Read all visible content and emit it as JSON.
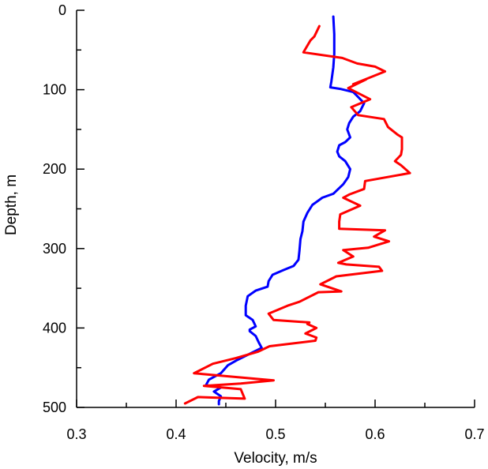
{
  "chart_data": {
    "type": "line",
    "title": "",
    "xlabel": "Velocity, m/s",
    "ylabel": "Depth, m",
    "xlim": [
      0.3,
      0.7
    ],
    "ylim": [
      0,
      500
    ],
    "y_inverted": true,
    "x_ticks": [
      "0.3",
      "0.4",
      "0.5",
      "0.6",
      "0.7"
    ],
    "y_ticks": [
      "0",
      "100",
      "200",
      "300",
      "400",
      "500"
    ],
    "grid": false,
    "legend": "none",
    "series": [
      {
        "color": "#0000ff",
        "points": [
          [
            0.558,
            8
          ],
          [
            0.559,
            30
          ],
          [
            0.559,
            55
          ],
          [
            0.558,
            72
          ],
          [
            0.556,
            90
          ],
          [
            0.555,
            97
          ],
          [
            0.565,
            99
          ],
          [
            0.578,
            103
          ],
          [
            0.582,
            108
          ],
          [
            0.589,
            117
          ],
          [
            0.585,
            127
          ],
          [
            0.578,
            134
          ],
          [
            0.574,
            142
          ],
          [
            0.572,
            150
          ],
          [
            0.575,
            160
          ],
          [
            0.57,
            166
          ],
          [
            0.564,
            170
          ],
          [
            0.562,
            178
          ],
          [
            0.564,
            184
          ],
          [
            0.57,
            190
          ],
          [
            0.575,
            200
          ],
          [
            0.573,
            210
          ],
          [
            0.568,
            219
          ],
          [
            0.558,
            231
          ],
          [
            0.547,
            236
          ],
          [
            0.537,
            245
          ],
          [
            0.532,
            255
          ],
          [
            0.528,
            266
          ],
          [
            0.527,
            278
          ],
          [
            0.525,
            288
          ],
          [
            0.524,
            303
          ],
          [
            0.523,
            314
          ],
          [
            0.518,
            322
          ],
          [
            0.508,
            327
          ],
          [
            0.497,
            333
          ],
          [
            0.493,
            341
          ],
          [
            0.492,
            348
          ],
          [
            0.48,
            353
          ],
          [
            0.472,
            360
          ],
          [
            0.47,
            372
          ],
          [
            0.47,
            384
          ],
          [
            0.477,
            390
          ],
          [
            0.48,
            398
          ],
          [
            0.474,
            402
          ],
          [
            0.474,
            404
          ],
          [
            0.48,
            410
          ],
          [
            0.483,
            418
          ],
          [
            0.486,
            425
          ],
          [
            0.462,
            440
          ],
          [
            0.452,
            447
          ],
          [
            0.445,
            457
          ],
          [
            0.433,
            465
          ],
          [
            0.43,
            472
          ],
          [
            0.445,
            475
          ],
          [
            0.438,
            480
          ],
          [
            0.445,
            486
          ],
          [
            0.443,
            492
          ],
          [
            0.443,
            496
          ]
        ]
      },
      {
        "color": "#ff0000",
        "points": [
          [
            0.544,
            20
          ],
          [
            0.539,
            33
          ],
          [
            0.535,
            38
          ],
          [
            0.528,
            53
          ],
          [
            0.567,
            60
          ],
          [
            0.582,
            67
          ],
          [
            0.6,
            71
          ],
          [
            0.61,
            77
          ],
          [
            0.578,
            93
          ],
          [
            0.591,
            87
          ],
          [
            0.573,
            98
          ],
          [
            0.595,
            112
          ],
          [
            0.576,
            122
          ],
          [
            0.583,
            132
          ],
          [
            0.609,
            137
          ],
          [
            0.613,
            147
          ],
          [
            0.623,
            157
          ],
          [
            0.627,
            160
          ],
          [
            0.627,
            175
          ],
          [
            0.626,
            182
          ],
          [
            0.62,
            190
          ],
          [
            0.626,
            195
          ],
          [
            0.635,
            205
          ],
          [
            0.59,
            215
          ],
          [
            0.589,
            225
          ],
          [
            0.574,
            232
          ],
          [
            0.568,
            236
          ],
          [
            0.585,
            246
          ],
          [
            0.565,
            257
          ],
          [
            0.564,
            266
          ],
          [
            0.564,
            275
          ],
          [
            0.61,
            277
          ],
          [
            0.599,
            285
          ],
          [
            0.614,
            291
          ],
          [
            0.593,
            299
          ],
          [
            0.568,
            302
          ],
          [
            0.578,
            310
          ],
          [
            0.563,
            318
          ],
          [
            0.571,
            320
          ],
          [
            0.604,
            323
          ],
          [
            0.607,
            328
          ],
          [
            0.561,
            335
          ],
          [
            0.545,
            345
          ],
          [
            0.566,
            354
          ],
          [
            0.543,
            355
          ],
          [
            0.524,
            367
          ],
          [
            0.512,
            372
          ],
          [
            0.493,
            382
          ],
          [
            0.498,
            390
          ],
          [
            0.534,
            393
          ],
          [
            0.532,
            395
          ],
          [
            0.541,
            400
          ],
          [
            0.53,
            407
          ],
          [
            0.541,
            412
          ],
          [
            0.54,
            416
          ],
          [
            0.494,
            423
          ],
          [
            0.482,
            430
          ],
          [
            0.46,
            438
          ],
          [
            0.437,
            445
          ],
          [
            0.418,
            457
          ],
          [
            0.48,
            464
          ],
          [
            0.498,
            466
          ],
          [
            0.465,
            470
          ],
          [
            0.428,
            473
          ],
          [
            0.465,
            477
          ],
          [
            0.469,
            489
          ],
          [
            0.445,
            488
          ],
          [
            0.422,
            487
          ],
          [
            0.409,
            495
          ]
        ]
      }
    ]
  }
}
